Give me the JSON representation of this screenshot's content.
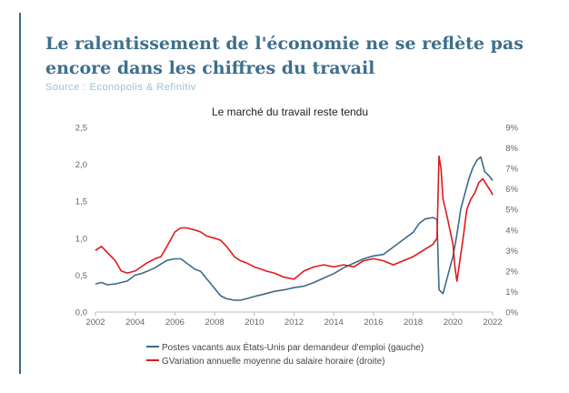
{
  "header": {
    "title": "Le ralentissement de l'économie ne se reflète pas encore dans les chiffres du travail",
    "source": "Source : Econopolis & Refinitiv"
  },
  "colors": {
    "title": "#3d6f8e",
    "source": "#9ac2d3",
    "series_vacancies": "#3d6a87",
    "series_wages": "#e0181b",
    "axis_text": "#666666"
  },
  "chart_data": {
    "type": "line",
    "title": "Le marché du travail reste tendu",
    "x_ticks": [
      "2002",
      "2004",
      "2006",
      "2008",
      "2010",
      "2012",
      "2014",
      "2016",
      "2018",
      "2020",
      "2022"
    ],
    "xlim": [
      2002,
      2022
    ],
    "y_left": {
      "ticks": [
        "0,0",
        "0,5",
        "1,0",
        "1,5",
        "2,0",
        "2,5"
      ],
      "lim": [
        0,
        2.5
      ]
    },
    "y_right": {
      "ticks": [
        "0%",
        "1%",
        "2%",
        "3%",
        "4%",
        "5%",
        "6%",
        "7%",
        "8%",
        "9%"
      ],
      "lim": [
        0,
        9
      ]
    },
    "grid": false,
    "legend_position": "bottom",
    "series": [
      {
        "name": "Postes vacants aux États-Unis par demandeur d'emploi (gauche)",
        "axis": "left",
        "color": "#3d6a87",
        "x": [
          2002.0,
          2002.3,
          2002.6,
          2003.0,
          2003.3,
          2003.6,
          2004.0,
          2004.3,
          2004.6,
          2005.0,
          2005.3,
          2005.6,
          2006.0,
          2006.3,
          2006.6,
          2007.0,
          2007.3,
          2007.6,
          2008.0,
          2008.3,
          2008.6,
          2009.0,
          2009.3,
          2009.6,
          2010.0,
          2010.3,
          2010.6,
          2011.0,
          2011.5,
          2012.0,
          2012.5,
          2013.0,
          2013.5,
          2014.0,
          2014.5,
          2015.0,
          2015.5,
          2016.0,
          2016.5,
          2017.0,
          2017.5,
          2018.0,
          2018.3,
          2018.6,
          2019.0,
          2019.2,
          2019.3,
          2019.5,
          2019.8,
          2020.0,
          2020.2,
          2020.4,
          2020.6,
          2020.8,
          2021.0,
          2021.2,
          2021.4,
          2021.6,
          2021.8,
          2022.0
        ],
        "values": [
          0.38,
          0.4,
          0.37,
          0.38,
          0.4,
          0.42,
          0.5,
          0.52,
          0.55,
          0.6,
          0.65,
          0.7,
          0.72,
          0.72,
          0.66,
          0.58,
          0.55,
          0.45,
          0.32,
          0.22,
          0.18,
          0.16,
          0.16,
          0.18,
          0.21,
          0.23,
          0.25,
          0.28,
          0.3,
          0.33,
          0.35,
          0.4,
          0.46,
          0.52,
          0.6,
          0.66,
          0.72,
          0.76,
          0.78,
          0.88,
          0.98,
          1.08,
          1.2,
          1.26,
          1.28,
          1.25,
          0.3,
          0.25,
          0.55,
          0.75,
          1.05,
          1.4,
          1.6,
          1.8,
          1.95,
          2.05,
          2.1,
          1.9,
          1.85,
          1.78
        ]
      },
      {
        "name": "GVariation annuelle moyenne du salaire horaire (droite)",
        "axis": "right",
        "color": "#e0181b",
        "x": [
          2002.0,
          2002.3,
          2002.6,
          2003.0,
          2003.3,
          2003.6,
          2004.0,
          2004.3,
          2004.6,
          2005.0,
          2005.3,
          2005.6,
          2006.0,
          2006.3,
          2006.6,
          2007.0,
          2007.3,
          2007.6,
          2008.0,
          2008.3,
          2008.6,
          2009.0,
          2009.3,
          2009.6,
          2010.0,
          2010.3,
          2010.6,
          2011.0,
          2011.5,
          2012.0,
          2012.5,
          2013.0,
          2013.5,
          2014.0,
          2014.5,
          2015.0,
          2015.5,
          2016.0,
          2016.5,
          2017.0,
          2017.5,
          2018.0,
          2018.5,
          2019.0,
          2019.2,
          2019.3,
          2019.4,
          2019.5,
          2019.7,
          2020.0,
          2020.1,
          2020.2,
          2020.35,
          2020.5,
          2020.7,
          2020.9,
          2021.1,
          2021.3,
          2021.5,
          2021.7,
          2021.9,
          2022.0
        ],
        "values": [
          3.0,
          3.2,
          2.9,
          2.5,
          2.0,
          1.9,
          2.0,
          2.2,
          2.4,
          2.6,
          2.7,
          3.2,
          3.9,
          4.1,
          4.1,
          4.0,
          3.9,
          3.7,
          3.6,
          3.5,
          3.2,
          2.7,
          2.5,
          2.4,
          2.2,
          2.1,
          2.0,
          1.9,
          1.7,
          1.6,
          2.0,
          2.2,
          2.3,
          2.2,
          2.3,
          2.2,
          2.5,
          2.6,
          2.5,
          2.3,
          2.5,
          2.7,
          3.0,
          3.3,
          3.6,
          7.6,
          7.0,
          5.5,
          4.7,
          3.3,
          2.2,
          1.5,
          2.5,
          3.5,
          5.0,
          5.5,
          5.8,
          6.3,
          6.5,
          6.2,
          5.9,
          5.7
        ]
      }
    ]
  }
}
